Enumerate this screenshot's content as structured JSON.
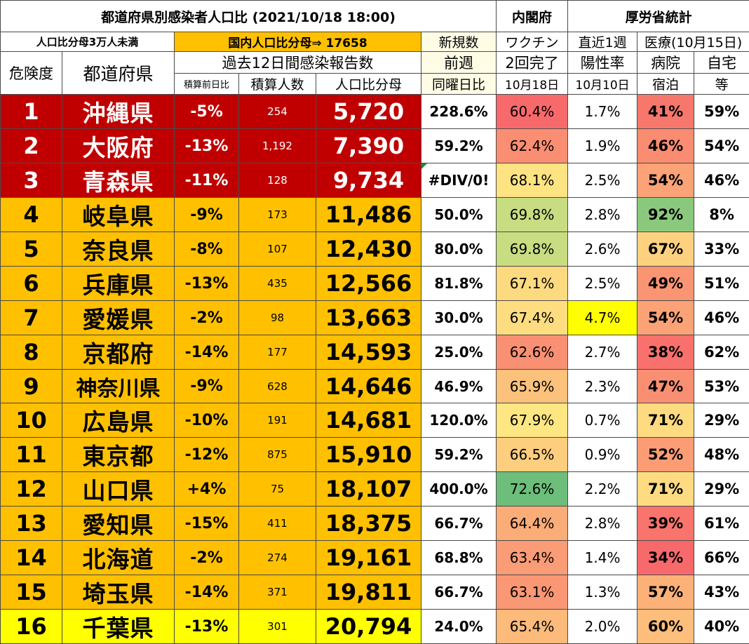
{
  "header": {
    "title": "都道府県別感染者人口比 (2021/10/18 18:00)",
    "cabinet_office": "内閣府",
    "mhlw_stats": "厚労省統計",
    "threshold_note": "人口比分母3万人未満",
    "national_ratio": "国内人口比分母⇒ 17658",
    "new_cases": "新規数",
    "vaccine": "ワクチン",
    "last_week": "直近1週",
    "medical": "医療(10月15日)",
    "risk": "危険度",
    "prefecture": "都道府県",
    "past12": "過去12日間感染報告数",
    "prev_week": "前週",
    "second_dose": "2回完了",
    "positivity": "陽性率",
    "hospital_hotel_1": "病院",
    "hospital_hotel_2": "宿泊",
    "home_1": "自宅",
    "home_2": "等",
    "cum_change": "積算前日比",
    "cum_count": "積算人数",
    "pop_ratio": "人口比分母",
    "same_weekday": "同曜日比",
    "vac_date": "10月18日",
    "pos_date": "10月10日"
  },
  "colors": {
    "red_row": "#c00000",
    "orange_row": "#ffc000",
    "yellow_row": "#ffff00",
    "header_orange": "#ffc000",
    "cream": "#fffce6"
  },
  "rows": [
    {
      "rank": "1",
      "pref": "沖縄県",
      "ratio": "-5%",
      "count": "254",
      "pop": "5,720",
      "week": "228.6%",
      "vac": "60.4%",
      "pos": "1.7%",
      "hosp": "41%",
      "home": "59%",
      "tier": "red",
      "vac_color": "#f8696b",
      "hosp_color": "#f8776d",
      "pos_color": "#ffffff"
    },
    {
      "rank": "2",
      "pref": "大阪府",
      "ratio": "-13%",
      "count": "1,192",
      "pop": "7,390",
      "week": "59.2%",
      "vac": "62.4%",
      "pos": "1.9%",
      "hosp": "46%",
      "home": "54%",
      "tier": "red",
      "vac_color": "#fa8e72",
      "hosp_color": "#f98c71",
      "pos_color": "#ffffff"
    },
    {
      "rank": "3",
      "pref": "青森県",
      "ratio": "-11%",
      "count": "128",
      "pop": "9,734",
      "week": "#DIV/0!",
      "vac": "68.1%",
      "pos": "2.5%",
      "hosp": "54%",
      "home": "46%",
      "tier": "red",
      "vac_color": "#fee382",
      "hosp_color": "#fba276",
      "pos_color": "#ffffff"
    },
    {
      "rank": "4",
      "pref": "岐阜県",
      "ratio": "-9%",
      "count": "173",
      "pop": "11,486",
      "week": "50.0%",
      "vac": "69.8%",
      "pos": "2.8%",
      "hosp": "92%",
      "home": "8%",
      "tier": "orange",
      "vac_color": "#c8dd81",
      "hosp_color": "#8ac97d",
      "pos_color": "#ffffff"
    },
    {
      "rank": "5",
      "pref": "奈良県",
      "ratio": "-8%",
      "count": "107",
      "pop": "12,430",
      "week": "80.0%",
      "vac": "69.8%",
      "pos": "2.6%",
      "hosp": "67%",
      "home": "33%",
      "tier": "orange",
      "vac_color": "#c8dd81",
      "hosp_color": "#fed17f",
      "pos_color": "#ffffff"
    },
    {
      "rank": "6",
      "pref": "兵庫県",
      "ratio": "-13%",
      "count": "435",
      "pop": "12,566",
      "week": "81.8%",
      "vac": "67.1%",
      "pos": "2.5%",
      "hosp": "49%",
      "home": "51%",
      "tier": "orange",
      "vac_color": "#fdda80",
      "hosp_color": "#fa9573",
      "pos_color": "#ffffff"
    },
    {
      "rank": "7",
      "pref": "愛媛県",
      "ratio": "-2%",
      "count": "98",
      "pop": "13,663",
      "week": "30.0%",
      "vac": "67.4%",
      "pos": "4.7%",
      "hosp": "54%",
      "home": "46%",
      "tier": "orange",
      "vac_color": "#fedd81",
      "hosp_color": "#fba276",
      "pos_color": "#ffff00"
    },
    {
      "rank": "8",
      "pref": "京都府",
      "ratio": "-14%",
      "count": "177",
      "pop": "14,593",
      "week": "25.0%",
      "vac": "62.6%",
      "pos": "2.7%",
      "hosp": "38%",
      "home": "62%",
      "tier": "orange",
      "vac_color": "#fa9073",
      "hosp_color": "#f8716c",
      "pos_color": "#ffffff"
    },
    {
      "rank": "9",
      "pref": "神奈川県",
      "ratio": "-9%",
      "count": "628",
      "pop": "14,646",
      "week": "46.9%",
      "vac": "65.9%",
      "pos": "2.3%",
      "hosp": "47%",
      "home": "53%",
      "tier": "orange",
      "vac_color": "#fcc27c",
      "hosp_color": "#f98f72",
      "pos_color": "#ffffff"
    },
    {
      "rank": "10",
      "pref": "広島県",
      "ratio": "-10%",
      "count": "191",
      "pop": "14,681",
      "week": "120.0%",
      "vac": "67.9%",
      "pos": "0.7%",
      "hosp": "71%",
      "home": "29%",
      "tier": "orange",
      "vac_color": "#fee683",
      "hosp_color": "#fedb81",
      "pos_color": "#ffffff"
    },
    {
      "rank": "11",
      "pref": "東京都",
      "ratio": "-12%",
      "count": "875",
      "pop": "15,910",
      "week": "59.2%",
      "vac": "66.5%",
      "pos": "0.9%",
      "hosp": "52%",
      "home": "48%",
      "tier": "orange",
      "vac_color": "#fdce7e",
      "hosp_color": "#fb9c75",
      "pos_color": "#ffffff"
    },
    {
      "rank": "12",
      "pref": "山口県",
      "ratio": "+4%",
      "count": "75",
      "pop": "18,107",
      "week": "400.0%",
      "vac": "72.6%",
      "pos": "2.2%",
      "hosp": "71%",
      "home": "29%",
      "tier": "orange",
      "vac_color": "#6cbe7a",
      "hosp_color": "#fedb81",
      "pos_color": "#ffffff"
    },
    {
      "rank": "13",
      "pref": "愛知県",
      "ratio": "-15%",
      "count": "411",
      "pop": "18,375",
      "week": "66.7%",
      "vac": "64.4%",
      "pos": "2.8%",
      "hosp": "39%",
      "home": "61%",
      "tier": "orange",
      "vac_color": "#fbad78",
      "hosp_color": "#f8746c",
      "pos_color": "#ffffff"
    },
    {
      "rank": "14",
      "pref": "北海道",
      "ratio": "-2%",
      "count": "274",
      "pop": "19,161",
      "week": "68.8%",
      "vac": "63.4%",
      "pos": "1.4%",
      "hosp": "34%",
      "home": "66%",
      "tier": "orange",
      "vac_color": "#fa9c75",
      "hosp_color": "#f8696b",
      "pos_color": "#ffffff"
    },
    {
      "rank": "15",
      "pref": "埼玉県",
      "ratio": "-14%",
      "count": "371",
      "pop": "19,811",
      "week": "66.7%",
      "vac": "63.1%",
      "pos": "1.3%",
      "hosp": "57%",
      "home": "43%",
      "tier": "orange",
      "vac_color": "#fa9774",
      "hosp_color": "#fcb179",
      "pos_color": "#ffffff"
    },
    {
      "rank": "16",
      "pref": "千葉県",
      "ratio": "-13%",
      "count": "301",
      "pop": "20,794",
      "week": "24.0%",
      "vac": "65.4%",
      "pos": "2.0%",
      "hosp": "60%",
      "home": "40%",
      "tier": "yellow",
      "vac_color": "#fcba7b",
      "hosp_color": "#fdbe7b",
      "pos_color": "#ffffff"
    }
  ]
}
